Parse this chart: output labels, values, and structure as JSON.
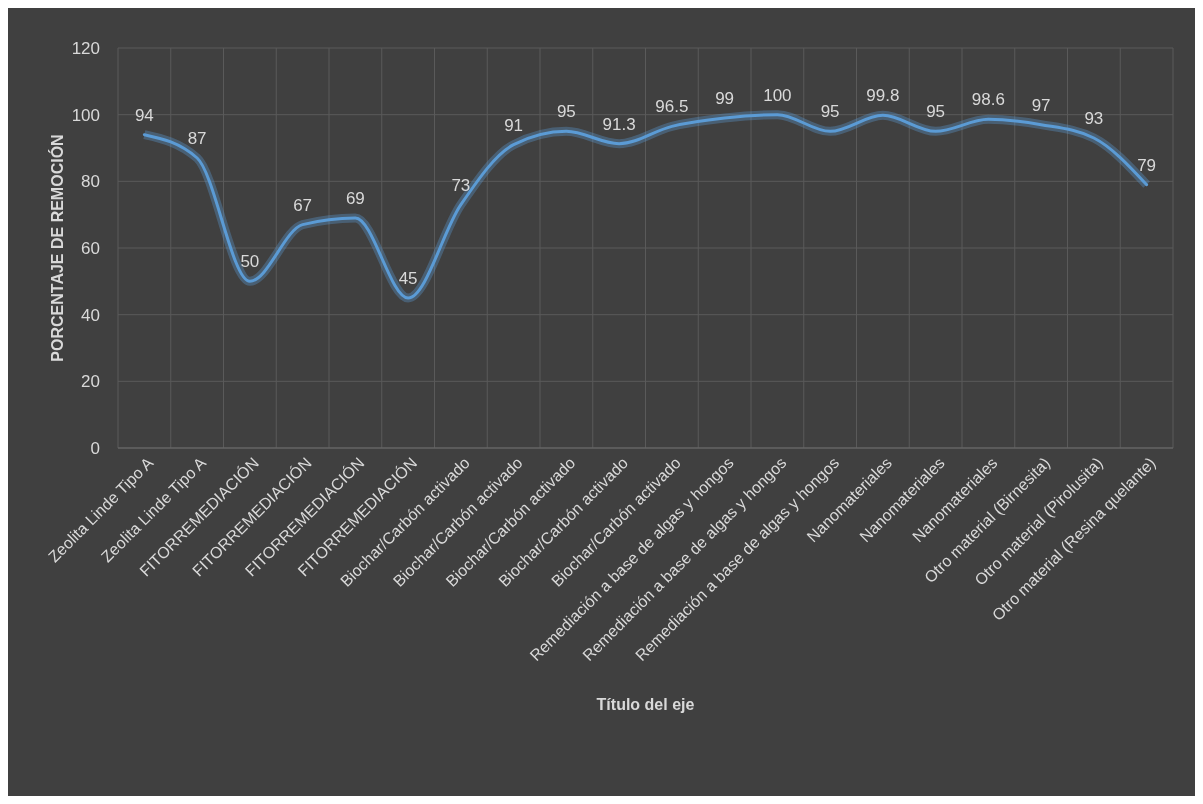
{
  "chart_data": {
    "type": "line",
    "xlabel": "Título del eje",
    "ylabel": "PORCENTAJE DE REMOCIÓN",
    "categories": [
      "Zeolita Linde Tipo A",
      "Zeolita Linde Tipo A",
      "FITORREMEDIACIÓN",
      "FITORREMEDIACIÓN",
      "FITORREMEDIACIÓN",
      "FITORREMEDIACIÓN",
      "Biochar/Carbón activado",
      "Biochar/Carbón activado",
      "Biochar/Carbón activado",
      "Biochar/Carbón activado",
      "Biochar/Carbón activado",
      "Remediación a base de algas y hongos",
      "Remediación a base de algas y hongos",
      "Remediación a base de algas y hongos",
      "Nanomateriales",
      "Nanomateriales",
      "Nanomateriales",
      "Otro material (Birnesita)",
      "Otro material (Pirolusita)",
      "Otro material (Resina quelante)"
    ],
    "series": [
      {
        "color": "#5b9bd5",
        "values": [
          94,
          87,
          50,
          67,
          69,
          45,
          73,
          91,
          95,
          91.3,
          96.5,
          99,
          100,
          95,
          99.8,
          95,
          98.6,
          97,
          93,
          79
        ]
      }
    ],
    "ylim": [
      0,
      120
    ],
    "yticks": [
      0,
      20,
      40,
      60,
      80,
      100,
      120
    ],
    "grid": true,
    "data_labels": true,
    "marker": "none",
    "line_style": "solid"
  }
}
